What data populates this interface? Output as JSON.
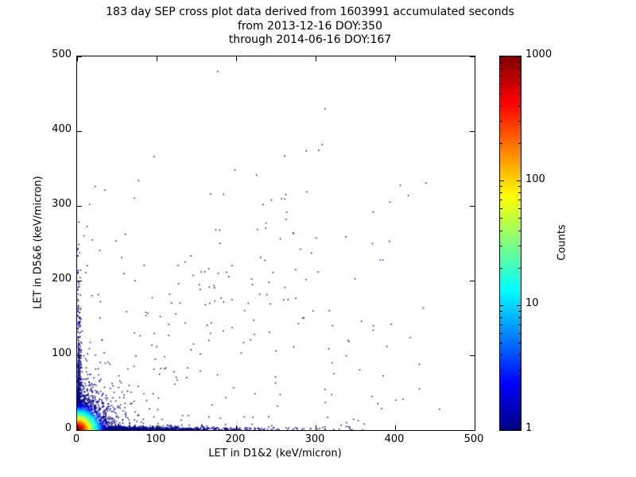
{
  "title": {
    "line1": "183 day SEP cross plot data derived from 1603991 accumulated seconds",
    "line2": "from 2013-12-16 DOY:350",
    "line3": "through 2014-06-16 DOY:167"
  },
  "axes": {
    "xlabel": "LET in D1&2 (keV/micron)",
    "ylabel": "LET in D5&6 (keV/micron)"
  },
  "colorbar": {
    "label": "Counts"
  },
  "chart_data": {
    "type": "scatter",
    "title": "183 day SEP cross plot data derived from 1603991 accumulated seconds from 2013-12-16 DOY:350 through 2014-06-16 DOY:167",
    "xlabel": "LET in D1&2 (keV/micron)",
    "ylabel": "LET in D5&6 (keV/micron)",
    "xlim": [
      0,
      500
    ],
    "ylim": [
      0,
      500
    ],
    "xticks": [
      0,
      100,
      200,
      300,
      400,
      500
    ],
    "yticks": [
      0,
      100,
      200,
      300,
      400,
      500
    ],
    "grid": false,
    "background": "#ffffff",
    "axis_color": "#000000",
    "colorbar": {
      "label": "Counts",
      "scale": "log",
      "range": [
        1,
        1000
      ],
      "ticks": [
        1,
        10,
        100,
        1000
      ],
      "colormap": "jet"
    },
    "colormap_stops": [
      {
        "t": 0.0,
        "color": "#000080"
      },
      {
        "t": 0.125,
        "color": "#0000ff"
      },
      {
        "t": 0.25,
        "color": "#0080ff"
      },
      {
        "t": 0.375,
        "color": "#00ffff"
      },
      {
        "t": 0.5,
        "color": "#80ff80"
      },
      {
        "t": 0.625,
        "color": "#ffff00"
      },
      {
        "t": 0.75,
        "color": "#ff8000"
      },
      {
        "t": 0.875,
        "color": "#ff0000"
      },
      {
        "t": 1.0,
        "color": "#800000"
      }
    ],
    "density_model": {
      "peak_counts": 1500,
      "radius_scale": 5
    },
    "generation": {
      "seed": 7,
      "point_size": 1.5,
      "clusters": [
        {
          "name": "origin-core",
          "type": "exp2d",
          "count": 7000,
          "x_scale": 4.5,
          "y_scale": 5
        },
        {
          "name": "origin-halo",
          "type": "exp2d",
          "count": 2600,
          "x_scale": 13,
          "y_scale": 16
        },
        {
          "name": "x-axis-band",
          "type": "axis-band",
          "axis": "x",
          "count": 1500,
          "reach_scale": 70,
          "max_reach": 365,
          "thickness": 2.2
        },
        {
          "name": "y-axis-band",
          "type": "axis-band",
          "axis": "y",
          "count": 650,
          "reach_scale": 52,
          "max_reach": 330,
          "thickness": 2.0
        },
        {
          "name": "diagonal-scatter",
          "type": "diagonal",
          "count": 90,
          "max_x": 290,
          "slope": 0.95,
          "spread": 30
        },
        {
          "name": "sparse-field",
          "type": "field",
          "count": 140,
          "x_max": 430,
          "y_max": 345
        }
      ]
    },
    "outliers": [
      [
        176,
        480
      ],
      [
        311,
        430
      ],
      [
        96,
        366
      ],
      [
        22,
        326
      ],
      [
        34,
        321
      ],
      [
        15,
        302
      ],
      [
        60,
        262
      ],
      [
        233,
        302
      ],
      [
        225,
        341
      ],
      [
        262,
        282
      ],
      [
        271,
        264
      ],
      [
        230,
        231
      ],
      [
        190,
        205
      ],
      [
        154,
        188
      ],
      [
        118,
        170
      ],
      [
        300,
        257
      ],
      [
        340,
        120
      ],
      [
        370,
        45
      ],
      [
        400,
        40
      ],
      [
        455,
        28
      ],
      [
        320,
        90
      ],
      [
        283,
        150
      ],
      [
        210,
        160
      ],
      [
        165,
        120
      ],
      [
        135,
        225
      ],
      [
        72,
        200
      ],
      [
        48,
        253
      ],
      [
        28,
        150
      ],
      [
        18,
        180
      ],
      [
        12,
        220
      ],
      [
        8,
        260
      ]
    ]
  }
}
